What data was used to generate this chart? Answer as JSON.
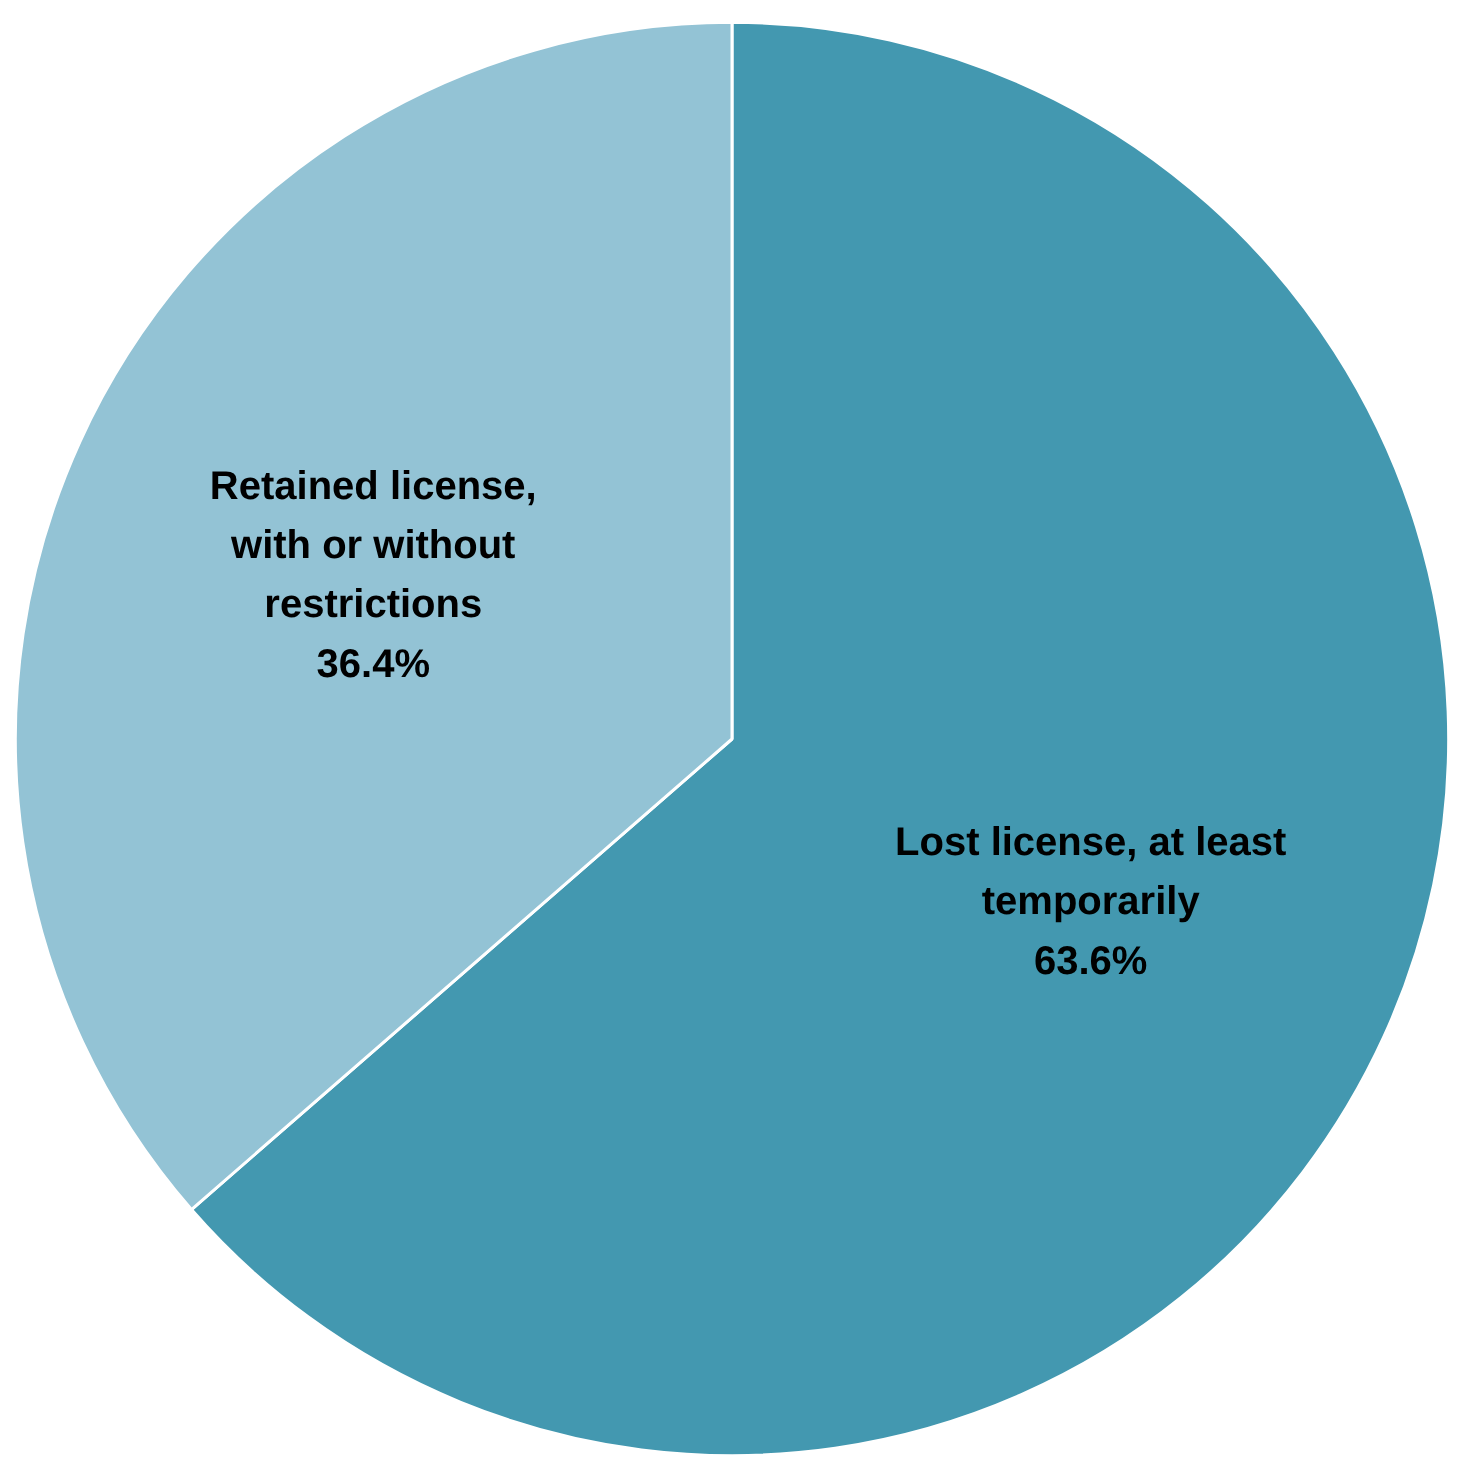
{
  "chart_data": {
    "type": "pie",
    "categories": [
      "Lost license, at least temporarily",
      "Retained license, with or without restrictions"
    ],
    "values": [
      63.6,
      36.4
    ],
    "colors": [
      "#4398b0",
      "#93c3d5"
    ],
    "value_labels": [
      "63.6%",
      "36.4%"
    ]
  }
}
